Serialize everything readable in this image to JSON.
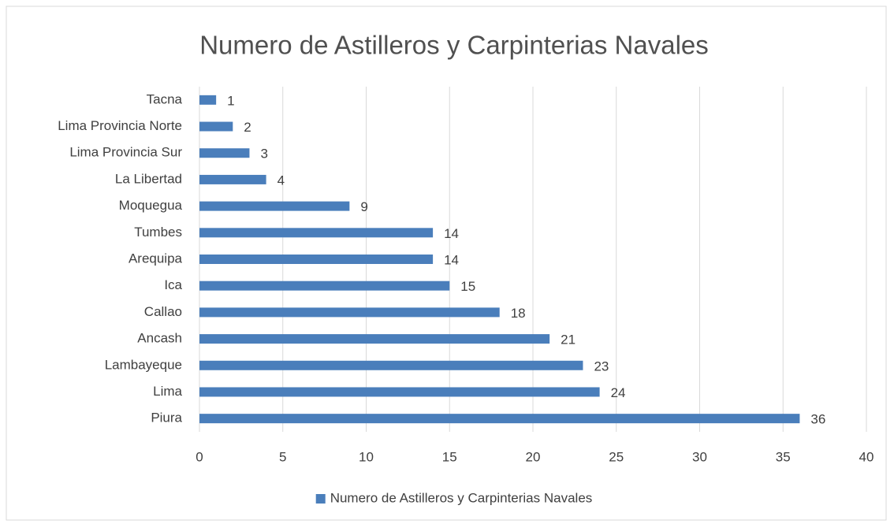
{
  "chart_data": {
    "type": "bar",
    "orientation": "horizontal",
    "title": "Numero de Astilleros y Carpinterias Navales",
    "categories": [
      "Tacna",
      "Lima Provincia Norte",
      "Lima Provincia Sur",
      "La Libertad",
      "Moquegua",
      "Tumbes",
      "Arequipa",
      "Ica",
      "Callao",
      "Ancash",
      "Lambayeque",
      "Lima",
      "Piura"
    ],
    "series": [
      {
        "name": "Numero de Astilleros y Carpinterias Navales",
        "color": "#4a7ebb",
        "values": [
          1,
          2,
          3,
          4,
          9,
          14,
          14,
          15,
          18,
          21,
          23,
          24,
          36
        ]
      }
    ],
    "xlim": [
      0,
      40
    ],
    "xticks": [
      0,
      5,
      10,
      15,
      20,
      25,
      30,
      35,
      40
    ],
    "grid": true,
    "legend": "bottom"
  }
}
